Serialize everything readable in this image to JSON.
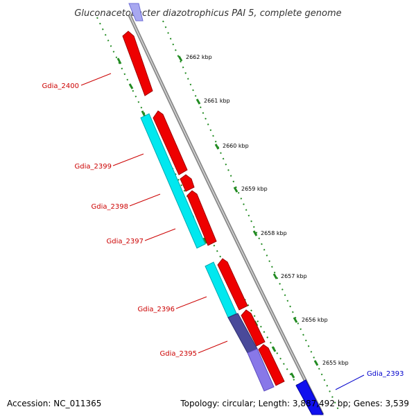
{
  "title": "Gluconacetobacter diazotrophicus PAI 5, complete genome",
  "footer": {
    "accession": "Accession: NC_011365",
    "summary": "Topology: circular; Length: 3,887,492 bp; Genes: 3,539"
  },
  "ticks": [
    {
      "label": "2662 kbp"
    },
    {
      "label": "2661 kbp"
    },
    {
      "label": "2660 kbp"
    },
    {
      "label": "2659 kbp"
    },
    {
      "label": "2658 kbp"
    },
    {
      "label": "2657 kbp"
    },
    {
      "label": "2656 kbp"
    },
    {
      "label": "2655 kbp"
    }
  ],
  "genes": [
    {
      "label": "Gdia_2400",
      "color": "#cc0000"
    },
    {
      "label": "Gdia_2399",
      "color": "#cc0000"
    },
    {
      "label": "Gdia_2398",
      "color": "#cc0000"
    },
    {
      "label": "Gdia_2397",
      "color": "#cc0000"
    },
    {
      "label": "Gdia_2396",
      "color": "#cc0000"
    },
    {
      "label": "Gdia_2395",
      "color": "#cc0000"
    },
    {
      "label": "Gdia_2393",
      "color": "#0000cc"
    }
  ],
  "colors": {
    "cds_forward": "#ff0000",
    "feature_cyan": "#00e5ee",
    "feature_purple_dark": "#4a4a9a",
    "feature_purple_light": "#8878e8",
    "gene_blue": "#0000ff",
    "backbone": "#999999",
    "tick_dots": "#228b22"
  }
}
